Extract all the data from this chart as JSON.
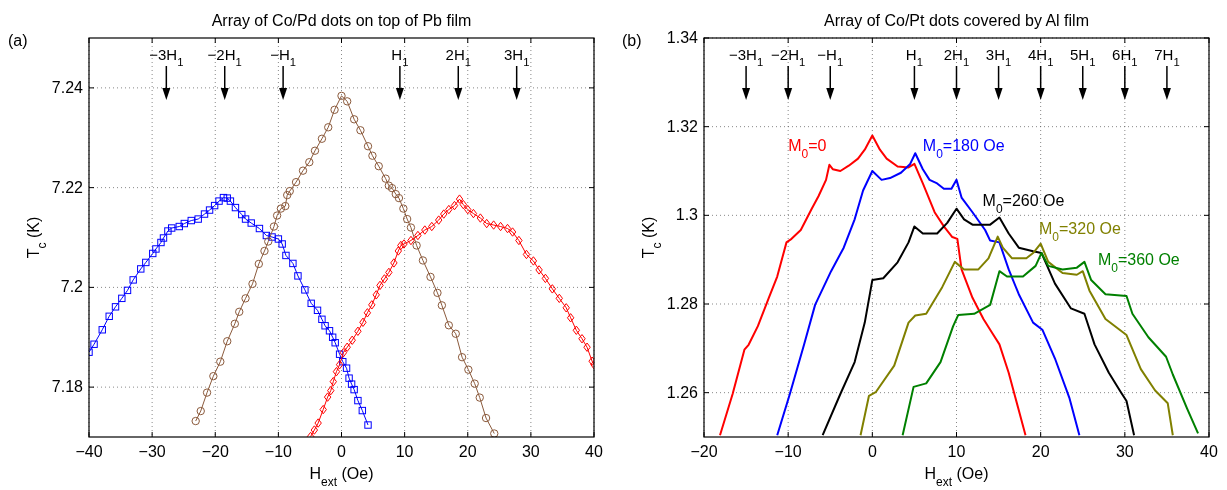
{
  "chart_data": [
    {
      "type": "line",
      "title": "Array of Co/Pd dots on top of Pb film",
      "xlabel": "H$_{ext}$ (Oe)",
      "ylabel": "T$_{c}$ (K)",
      "xlim": [
        -40,
        40
      ],
      "xticks": [
        -40,
        -30,
        -20,
        -10,
        0,
        10,
        20,
        30,
        40
      ],
      "ylim": [
        7.17,
        7.25
      ],
      "yticks": [
        7.18,
        7.2,
        7.22,
        7.24
      ],
      "grid": true,
      "annotations": [
        "(a)"
      ],
      "ref_lines": [
        {
          "axis": "x",
          "value": -27.75,
          "label": "−3H$_{1}$"
        },
        {
          "axis": "x",
          "value": -18.5,
          "label": "−2H$_{1}$"
        },
        {
          "axis": "x",
          "value": -9.25,
          "label": "−H$_{1}$"
        },
        {
          "axis": "x",
          "value": 9.25,
          "label": "H$_{1}$"
        },
        {
          "axis": "x",
          "value": 18.5,
          "label": "2H$_{1}$"
        },
        {
          "axis": "x",
          "value": 27.75,
          "label": "3H$_{1}$"
        }
      ],
      "series": [
        {
          "color": "#0000ff",
          "marker": "square",
          "x": [
            -40,
            -39.2,
            -37.9,
            -36.8,
            -35.8,
            -34.8,
            -33.9,
            -33,
            -31.8,
            -31,
            -29.9,
            -29.4,
            -28.6,
            -28.2,
            -27.5,
            -26.9,
            -25.7,
            -24.9,
            -23.8,
            -22.7,
            -21.7,
            -20.9,
            -20.1,
            -19.4,
            -18.7,
            -18.1,
            -17.6,
            -16.8,
            -15.8,
            -15.2,
            -14.3,
            -13,
            -11.9,
            -11,
            -10,
            -9.4,
            -8.8,
            -7.7,
            -6.9,
            -5.8,
            -4.8,
            -3.8,
            -3.1,
            -2.6,
            -1.9,
            -1.4,
            -1,
            -0.3,
            0.2,
            0.8,
            1.2,
            1.6,
            2,
            2.6,
            3.3,
            4.2
          ],
          "values": [
            7.187,
            7.1886,
            7.1915,
            7.1942,
            7.1961,
            7.1978,
            7.1994,
            7.2015,
            7.2037,
            7.205,
            7.2068,
            7.2077,
            7.209,
            7.2099,
            7.2113,
            7.2119,
            7.2122,
            7.2128,
            7.2134,
            7.2137,
            7.2147,
            7.2155,
            7.2164,
            7.2173,
            7.218,
            7.2179,
            7.2173,
            7.216,
            7.2146,
            7.2137,
            7.2129,
            7.2118,
            7.2104,
            7.2101,
            7.2097,
            7.2087,
            7.2064,
            7.2048,
            7.2023,
            7.1995,
            7.1968,
            7.1954,
            7.1936,
            7.1923,
            7.1913,
            7.19,
            7.1889,
            7.1866,
            7.1851,
            7.1838,
            7.1818,
            7.1806,
            7.1795,
            7.1773,
            7.1753,
            7.1724
          ]
        },
        {
          "color": "#8b5a3c",
          "marker": "circle",
          "x": [
            -23.1,
            -22.3,
            -21.3,
            -20.3,
            -19.2,
            -18.1,
            -16.9,
            -16.2,
            -15.2,
            -14.1,
            -13.1,
            -12.2,
            -11.6,
            -10.7,
            -10.2,
            -9.6,
            -8.9,
            -8.6,
            -8.2,
            -7.2,
            -6.1,
            -5.1,
            -4.2,
            -3.1,
            -2.1,
            -1.1,
            0,
            0.9,
            2,
            3,
            4.2,
            4.9,
            5.9,
            7,
            7.5,
            8,
            8.6,
            9.1,
            9.8,
            10.4,
            11,
            11.9,
            12.9,
            14.1,
            15.2,
            15.9,
            17,
            18.1,
            19.1,
            20.1,
            21.1,
            21.9,
            22.9,
            24.2
          ],
          "values": [
            7.1732,
            7.1752,
            7.1789,
            7.1822,
            7.1851,
            7.1892,
            7.1927,
            7.1951,
            7.1978,
            7.2007,
            7.2047,
            7.2073,
            7.2092,
            7.2122,
            7.2144,
            7.2158,
            7.2163,
            7.2185,
            7.2193,
            7.2211,
            7.2234,
            7.2251,
            7.2274,
            7.2298,
            7.2321,
            7.2356,
            7.2384,
            7.2373,
            7.2337,
            7.2315,
            7.2283,
            7.2264,
            7.2243,
            7.2218,
            7.2204,
            7.2199,
            7.2187,
            7.2179,
            7.2158,
            7.2137,
            7.212,
            7.2084,
            7.2054,
            7.2021,
            7.1989,
            7.1964,
            7.1924,
            7.1907,
            7.186,
            7.1835,
            7.1807,
            7.1779,
            7.1738,
            7.1707
          ]
        },
        {
          "color": "#ff0000",
          "marker": "diamond",
          "x": [
            -4.9,
            -4.3,
            -3.7,
            -2.9,
            -2.2,
            -1.7,
            -1.3,
            -0.8,
            -0.3,
            0.3,
            0.9,
            1.7,
            2.6,
            3.4,
            4.1,
            4.8,
            5.5,
            6.1,
            6.8,
            7.5,
            8.3,
            9,
            9.4,
            9.9,
            11,
            12.1,
            13.2,
            14.3,
            15.4,
            16.2,
            17,
            17.9,
            18.7,
            19.3,
            20,
            20.9,
            22,
            23,
            24.1,
            25.2,
            26.3,
            27.1,
            28.1,
            29.3,
            30.4,
            31.3,
            32.3,
            33.4,
            34.5,
            35.6,
            36.3,
            37.2,
            38.1,
            38.9,
            39.7,
            40
          ],
          "values": [
            7.1701,
            7.1714,
            7.1728,
            7.1755,
            7.178,
            7.1793,
            7.1811,
            7.1831,
            7.1845,
            7.1869,
            7.188,
            7.1894,
            7.1912,
            7.193,
            7.1949,
            7.1965,
            7.1985,
            7.2004,
            7.2017,
            7.203,
            7.2049,
            7.2073,
            7.2084,
            7.2087,
            7.2094,
            7.2104,
            7.2115,
            7.2122,
            7.2135,
            7.2147,
            7.2156,
            7.2164,
            7.2177,
            7.2166,
            7.2156,
            7.2148,
            7.2139,
            7.2128,
            7.2125,
            7.2122,
            7.2118,
            7.2111,
            7.2094,
            7.2066,
            7.2053,
            7.2035,
            7.2018,
            7.1997,
            7.1978,
            7.1959,
            7.1939,
            7.1914,
            7.1897,
            7.188,
            7.1852,
            7.1845
          ]
        }
      ]
    },
    {
      "type": "line",
      "title": "Array of Co/Pt dots covered by Al film",
      "xlabel": "H$_{ext}$ (Oe)",
      "ylabel": "T$_{c}$ (K)",
      "xlim": [
        -20,
        40
      ],
      "xticks": [
        -20,
        -10,
        0,
        10,
        20,
        30,
        40
      ],
      "ylim": [
        1.25,
        1.34
      ],
      "yticks": [
        1.26,
        1.28,
        1.3,
        1.32,
        1.34
      ],
      "grid": true,
      "annotations": [
        "(b)"
      ],
      "ref_lines": [
        {
          "axis": "x",
          "value": -15,
          "label": "−3H$_{1}$"
        },
        {
          "axis": "x",
          "value": -10,
          "label": "−2H$_{1}$"
        },
        {
          "axis": "x",
          "value": -5,
          "label": "−H$_{1}$"
        },
        {
          "axis": "x",
          "value": 5,
          "label": "H$_{1}$"
        },
        {
          "axis": "x",
          "value": 10,
          "label": "2H$_{1}$"
        },
        {
          "axis": "x",
          "value": 15,
          "label": "3H$_{1}$"
        },
        {
          "axis": "x",
          "value": 20,
          "label": "4H$_{1}$"
        },
        {
          "axis": "x",
          "value": 25,
          "label": "5H$_{1}$"
        },
        {
          "axis": "x",
          "value": 30,
          "label": "6H$_{1}$"
        },
        {
          "axis": "x",
          "value": 35,
          "label": "7H$_{1}$"
        }
      ],
      "series": [
        {
          "name": "M$_{0}$=0",
          "color": "#ff0000",
          "x": [
            -18.1,
            -16.6,
            -15.2,
            -14.7,
            -13.6,
            -12.3,
            -11.3,
            -10.2,
            -9.6,
            -8.5,
            -7.2,
            -6.4,
            -5.5,
            -5.1,
            -4.7,
            -3.8,
            -2.8,
            -1.7,
            -0.9,
            0,
            0.9,
            1.7,
            3,
            4.3,
            5,
            6,
            7.4,
            8.5,
            9.5,
            10.1,
            10.6,
            11.9,
            13.2,
            14.3,
            15.1,
            16.2,
            18.2
          ],
          "values": [
            1.2504,
            1.2597,
            1.2697,
            1.2708,
            1.275,
            1.2814,
            1.2862,
            1.2939,
            1.2947,
            1.2967,
            1.3015,
            1.3043,
            1.308,
            1.3114,
            1.3104,
            1.31,
            1.3112,
            1.3128,
            1.3148,
            1.318,
            1.3148,
            1.3128,
            1.311,
            1.3108,
            1.3116,
            1.3072,
            1.3007,
            1.2975,
            1.2951,
            1.2947,
            1.2878,
            1.2814,
            1.2766,
            1.2733,
            1.2709,
            1.2645,
            1.2504
          ]
        },
        {
          "name": "M$_{0}$=180 Oe",
          "color": "#0000ff",
          "x": [
            -11.3,
            -9.8,
            -8.1,
            -6.8,
            -4.9,
            -3.4,
            -2.1,
            -1.1,
            0,
            1.1,
            2.1,
            3.4,
            4.5,
            5.1,
            6,
            6.8,
            7.7,
            8.5,
            9.4,
            10,
            10.6,
            11.9,
            13.4,
            14,
            15.1,
            16.2,
            17.4,
            19.1,
            20.2,
            21.7,
            23.4,
            24.6
          ],
          "values": [
            1.2504,
            1.2597,
            1.2709,
            1.2798,
            1.2874,
            1.2927,
            1.2991,
            1.3056,
            1.31,
            1.308,
            1.3084,
            1.3096,
            1.3116,
            1.314,
            1.3104,
            1.308,
            1.3072,
            1.306,
            1.306,
            1.308,
            1.304,
            1.3007,
            1.2967,
            1.2943,
            1.2939,
            1.2878,
            1.2822,
            1.2758,
            1.2742,
            1.2677,
            1.2589,
            1.2504
          ]
        },
        {
          "name": "M$_{0}$=260 Oe",
          "color": "#000000",
          "x": [
            -5.9,
            -3.8,
            -2.1,
            -0.9,
            0,
            1.3,
            3,
            4.3,
            5,
            6,
            7.7,
            8.9,
            10,
            10.9,
            11.9,
            14,
            15.1,
            16.2,
            17.4,
            19.1,
            20.1,
            21.7,
            23.6,
            25.2,
            26.4,
            28.1,
            29.4,
            30.2,
            31.1
          ],
          "values": [
            1.2504,
            1.2597,
            1.2669,
            1.2758,
            1.2854,
            1.2858,
            1.2894,
            1.2939,
            1.2975,
            1.2959,
            1.2959,
            1.2983,
            1.3015,
            1.2991,
            1.2979,
            1.2979,
            1.2995,
            1.2959,
            1.2927,
            1.2919,
            1.2915,
            1.2846,
            1.279,
            1.2778,
            1.2709,
            1.2645,
            1.2605,
            1.2581,
            1.2504
          ]
        },
        {
          "name": "M$_{0}$=320 Oe",
          "color": "#808000",
          "x": [
            -1.4,
            -0.4,
            0.4,
            2.6,
            4.3,
            5.1,
            6.4,
            8.3,
            9.8,
            10.9,
            12.6,
            13.8,
            14.9,
            15.5,
            16.6,
            18.3,
            19.1,
            20,
            20.9,
            22.6,
            24.3,
            25,
            25.8,
            27.7,
            30.2,
            31.9,
            33.6,
            35.1,
            35.7
          ],
          "values": [
            1.2504,
            1.2593,
            1.2601,
            1.2661,
            1.2758,
            1.2774,
            1.2778,
            1.2838,
            1.2895,
            1.2878,
            1.2878,
            1.2903,
            1.2952,
            1.2927,
            1.2903,
            1.2903,
            1.2915,
            1.2936,
            1.2895,
            1.287,
            1.2866,
            1.2874,
            1.283,
            1.2766,
            1.273,
            1.2653,
            1.2605,
            1.2576,
            1.2504
          ]
        },
        {
          "name": "M$_{0}$=360 Oe",
          "color": "#008000",
          "x": [
            3.6,
            4.9,
            6.4,
            8.1,
            9.6,
            10.2,
            12.1,
            14,
            15.1,
            16,
            17.9,
            19.4,
            20.1,
            20.9,
            22.6,
            24.3,
            25.2,
            26,
            27.7,
            30.2,
            30.9,
            32.8,
            34.9,
            35.7,
            37.4,
            38.7
          ],
          "values": [
            1.2504,
            1.2613,
            1.2621,
            1.2669,
            1.275,
            1.2775,
            1.2778,
            1.2798,
            1.2874,
            1.2862,
            1.2862,
            1.2886,
            1.2915,
            1.2886,
            1.2878,
            1.2882,
            1.2895,
            1.2854,
            1.2822,
            1.2818,
            1.2778,
            1.2725,
            1.2681,
            1.2641,
            1.2564,
            1.2508
          ]
        }
      ]
    }
  ]
}
